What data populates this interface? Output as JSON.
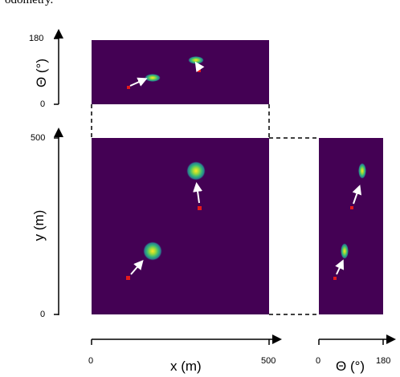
{
  "caption": "odometry.",
  "top_panel": {
    "ylabel": "Θ (°)",
    "yticks": [
      "180",
      "0"
    ]
  },
  "main_panel": {
    "ylabel": "y (m)",
    "yticks": [
      "500",
      "0"
    ],
    "xlabel": "x (m)",
    "xticks": [
      "0",
      "500"
    ]
  },
  "side_panel": {
    "xlabel": "Θ (°)",
    "xticks": [
      "0",
      "180"
    ]
  },
  "colors": {
    "background": "#440154",
    "blob_outer": "#2a7c8e",
    "blob_mid": "#35b779",
    "blob_core": "#fde725",
    "marker": "#e41a1c",
    "arrow": "#ffffff"
  }
}
